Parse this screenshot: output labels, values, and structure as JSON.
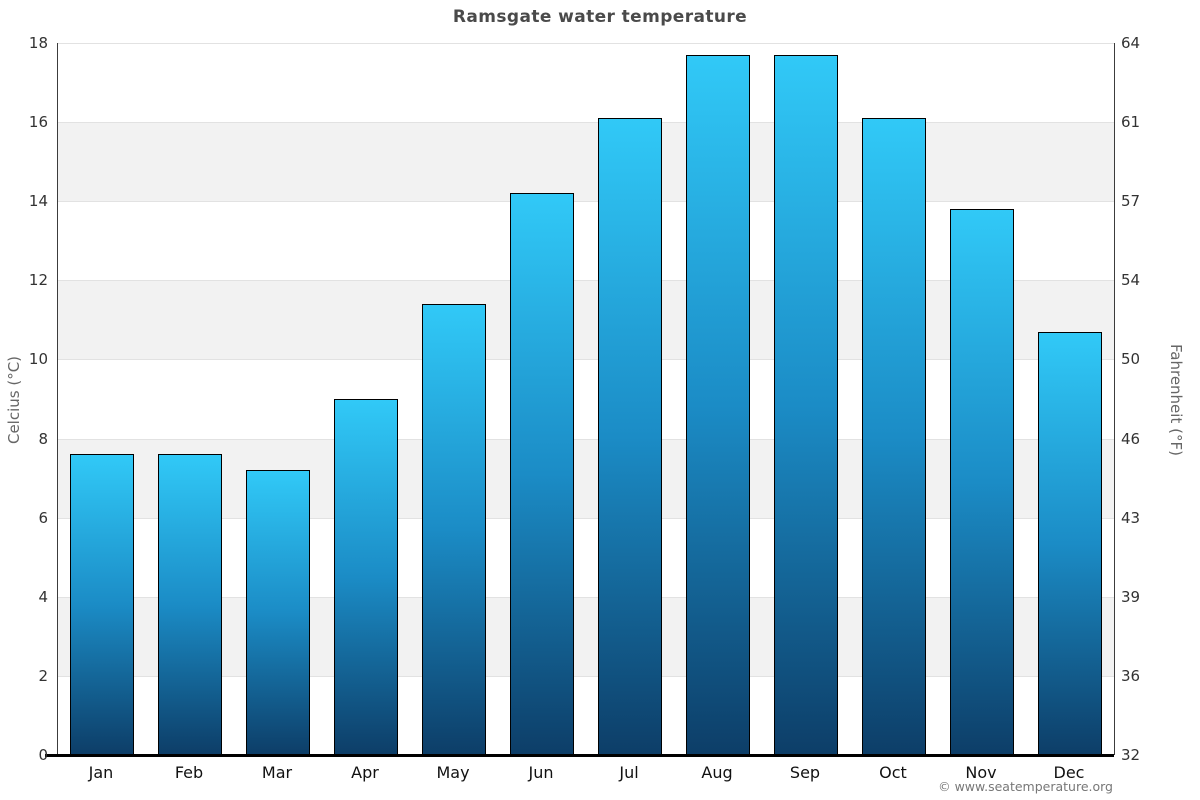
{
  "watermark": "© www.seatemperature.org",
  "chart_data": {
    "type": "bar",
    "title": "Ramsgate water temperature",
    "categories": [
      "Jan",
      "Feb",
      "Mar",
      "Apr",
      "May",
      "Jun",
      "Jul",
      "Aug",
      "Sep",
      "Oct",
      "Nov",
      "Dec"
    ],
    "values": [
      7.6,
      7.6,
      7.2,
      9.0,
      11.4,
      14.2,
      16.1,
      17.7,
      17.7,
      16.1,
      13.8,
      10.7
    ],
    "unit": "°C",
    "xlabel": "",
    "ylabel_left": "Celcius (°C)",
    "ylabel_right": "Fahrenheit (°F)",
    "ylim": [
      0,
      18
    ],
    "yticks_left": [
      0,
      2,
      4,
      6,
      8,
      10,
      12,
      14,
      16,
      18
    ],
    "yticks_right": [
      32,
      36,
      39,
      43,
      46,
      50,
      54,
      57,
      61,
      64
    ],
    "legend": "none",
    "grid": "alternating horizontal gray bands every 2°C with light gridlines at each even tick",
    "colors": {
      "bar_gradient_top": "#31C9F7",
      "bar_gradient_mid": "#1B8CC6",
      "bar_gradient_bottom": "#0D3E68",
      "bar_border": "#000000",
      "band": "#F2F2F2",
      "gridline": "#E2E2E2",
      "axis_line": "#3C3C3C",
      "baseline": "#000000",
      "title_text": "#4A4A4A",
      "tick_text": "#333333",
      "axis_title_text": "#666666",
      "watermark_text": "#777777"
    }
  }
}
